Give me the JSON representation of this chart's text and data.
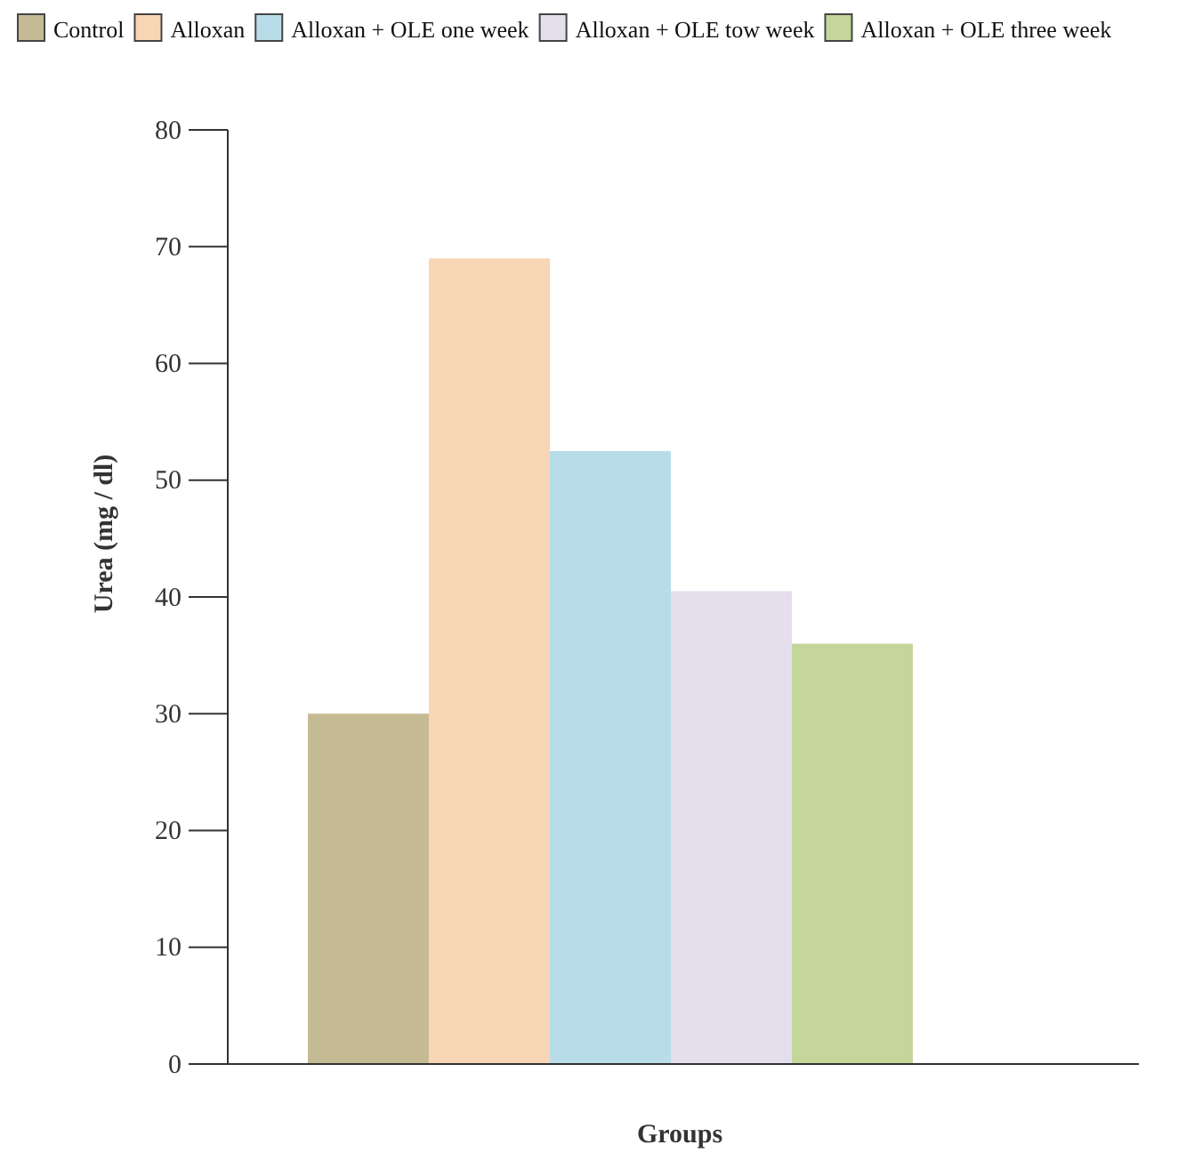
{
  "chart_data": {
    "type": "bar",
    "xlabel": "Groups",
    "ylabel": "Urea (mg / dl)",
    "categories": [
      null,
      null,
      null,
      null,
      null
    ],
    "series": [
      {
        "name": "Control",
        "color": "#c4bb94",
        "values": [
          30,
          null,
          null,
          null,
          null
        ]
      },
      {
        "name": "Alloxan",
        "color": "#f8d5b4",
        "values": [
          null,
          69,
          null,
          null,
          null
        ]
      },
      {
        "name": "Alloxan + OLE one week",
        "color": "#b9dde8",
        "values": [
          null,
          null,
          52.5,
          null,
          null
        ]
      },
      {
        "name": "Alloxan + OLE tow week",
        "color": "#e4deed",
        "values": [
          null,
          null,
          null,
          40.5,
          null
        ]
      },
      {
        "name": "Alloxan + OLE three week",
        "color": "#c5d69b",
        "values": [
          null,
          null,
          null,
          null,
          36
        ]
      }
    ],
    "ylim": [
      0,
      80
    ],
    "yticks": [
      0,
      10,
      20,
      30,
      40,
      50,
      60,
      70,
      80
    ],
    "stacked": true,
    "grid": false,
    "legend": "top"
  }
}
